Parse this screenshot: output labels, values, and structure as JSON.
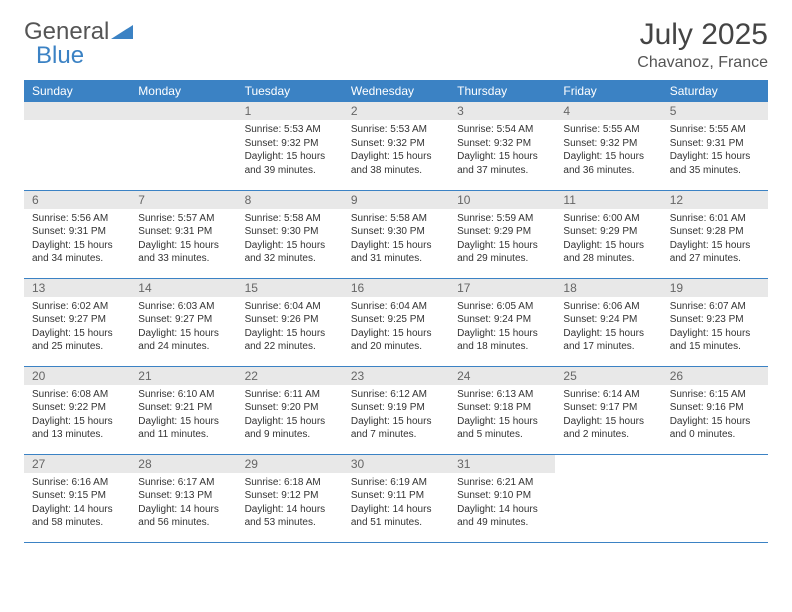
{
  "logo": {
    "general": "General",
    "blue": "Blue"
  },
  "title": "July 2025",
  "location": "Chavanoz, France",
  "weekdays": [
    "Sunday",
    "Monday",
    "Tuesday",
    "Wednesday",
    "Thursday",
    "Friday",
    "Saturday"
  ],
  "colors": {
    "header_bg": "#3b82c4",
    "header_text": "#ffffff",
    "daynum_bg": "#e8e8e8",
    "border": "#3b82c4"
  },
  "weeks": [
    [
      null,
      null,
      {
        "n": "1",
        "sr": "Sunrise: 5:53 AM",
        "ss": "Sunset: 9:32 PM",
        "dl1": "Daylight: 15 hours",
        "dl2": "and 39 minutes."
      },
      {
        "n": "2",
        "sr": "Sunrise: 5:53 AM",
        "ss": "Sunset: 9:32 PM",
        "dl1": "Daylight: 15 hours",
        "dl2": "and 38 minutes."
      },
      {
        "n": "3",
        "sr": "Sunrise: 5:54 AM",
        "ss": "Sunset: 9:32 PM",
        "dl1": "Daylight: 15 hours",
        "dl2": "and 37 minutes."
      },
      {
        "n": "4",
        "sr": "Sunrise: 5:55 AM",
        "ss": "Sunset: 9:32 PM",
        "dl1": "Daylight: 15 hours",
        "dl2": "and 36 minutes."
      },
      {
        "n": "5",
        "sr": "Sunrise: 5:55 AM",
        "ss": "Sunset: 9:31 PM",
        "dl1": "Daylight: 15 hours",
        "dl2": "and 35 minutes."
      }
    ],
    [
      {
        "n": "6",
        "sr": "Sunrise: 5:56 AM",
        "ss": "Sunset: 9:31 PM",
        "dl1": "Daylight: 15 hours",
        "dl2": "and 34 minutes."
      },
      {
        "n": "7",
        "sr": "Sunrise: 5:57 AM",
        "ss": "Sunset: 9:31 PM",
        "dl1": "Daylight: 15 hours",
        "dl2": "and 33 minutes."
      },
      {
        "n": "8",
        "sr": "Sunrise: 5:58 AM",
        "ss": "Sunset: 9:30 PM",
        "dl1": "Daylight: 15 hours",
        "dl2": "and 32 minutes."
      },
      {
        "n": "9",
        "sr": "Sunrise: 5:58 AM",
        "ss": "Sunset: 9:30 PM",
        "dl1": "Daylight: 15 hours",
        "dl2": "and 31 minutes."
      },
      {
        "n": "10",
        "sr": "Sunrise: 5:59 AM",
        "ss": "Sunset: 9:29 PM",
        "dl1": "Daylight: 15 hours",
        "dl2": "and 29 minutes."
      },
      {
        "n": "11",
        "sr": "Sunrise: 6:00 AM",
        "ss": "Sunset: 9:29 PM",
        "dl1": "Daylight: 15 hours",
        "dl2": "and 28 minutes."
      },
      {
        "n": "12",
        "sr": "Sunrise: 6:01 AM",
        "ss": "Sunset: 9:28 PM",
        "dl1": "Daylight: 15 hours",
        "dl2": "and 27 minutes."
      }
    ],
    [
      {
        "n": "13",
        "sr": "Sunrise: 6:02 AM",
        "ss": "Sunset: 9:27 PM",
        "dl1": "Daylight: 15 hours",
        "dl2": "and 25 minutes."
      },
      {
        "n": "14",
        "sr": "Sunrise: 6:03 AM",
        "ss": "Sunset: 9:27 PM",
        "dl1": "Daylight: 15 hours",
        "dl2": "and 24 minutes."
      },
      {
        "n": "15",
        "sr": "Sunrise: 6:04 AM",
        "ss": "Sunset: 9:26 PM",
        "dl1": "Daylight: 15 hours",
        "dl2": "and 22 minutes."
      },
      {
        "n": "16",
        "sr": "Sunrise: 6:04 AM",
        "ss": "Sunset: 9:25 PM",
        "dl1": "Daylight: 15 hours",
        "dl2": "and 20 minutes."
      },
      {
        "n": "17",
        "sr": "Sunrise: 6:05 AM",
        "ss": "Sunset: 9:24 PM",
        "dl1": "Daylight: 15 hours",
        "dl2": "and 18 minutes."
      },
      {
        "n": "18",
        "sr": "Sunrise: 6:06 AM",
        "ss": "Sunset: 9:24 PM",
        "dl1": "Daylight: 15 hours",
        "dl2": "and 17 minutes."
      },
      {
        "n": "19",
        "sr": "Sunrise: 6:07 AM",
        "ss": "Sunset: 9:23 PM",
        "dl1": "Daylight: 15 hours",
        "dl2": "and 15 minutes."
      }
    ],
    [
      {
        "n": "20",
        "sr": "Sunrise: 6:08 AM",
        "ss": "Sunset: 9:22 PM",
        "dl1": "Daylight: 15 hours",
        "dl2": "and 13 minutes."
      },
      {
        "n": "21",
        "sr": "Sunrise: 6:10 AM",
        "ss": "Sunset: 9:21 PM",
        "dl1": "Daylight: 15 hours",
        "dl2": "and 11 minutes."
      },
      {
        "n": "22",
        "sr": "Sunrise: 6:11 AM",
        "ss": "Sunset: 9:20 PM",
        "dl1": "Daylight: 15 hours",
        "dl2": "and 9 minutes."
      },
      {
        "n": "23",
        "sr": "Sunrise: 6:12 AM",
        "ss": "Sunset: 9:19 PM",
        "dl1": "Daylight: 15 hours",
        "dl2": "and 7 minutes."
      },
      {
        "n": "24",
        "sr": "Sunrise: 6:13 AM",
        "ss": "Sunset: 9:18 PM",
        "dl1": "Daylight: 15 hours",
        "dl2": "and 5 minutes."
      },
      {
        "n": "25",
        "sr": "Sunrise: 6:14 AM",
        "ss": "Sunset: 9:17 PM",
        "dl1": "Daylight: 15 hours",
        "dl2": "and 2 minutes."
      },
      {
        "n": "26",
        "sr": "Sunrise: 6:15 AM",
        "ss": "Sunset: 9:16 PM",
        "dl1": "Daylight: 15 hours",
        "dl2": "and 0 minutes."
      }
    ],
    [
      {
        "n": "27",
        "sr": "Sunrise: 6:16 AM",
        "ss": "Sunset: 9:15 PM",
        "dl1": "Daylight: 14 hours",
        "dl2": "and 58 minutes."
      },
      {
        "n": "28",
        "sr": "Sunrise: 6:17 AM",
        "ss": "Sunset: 9:13 PM",
        "dl1": "Daylight: 14 hours",
        "dl2": "and 56 minutes."
      },
      {
        "n": "29",
        "sr": "Sunrise: 6:18 AM",
        "ss": "Sunset: 9:12 PM",
        "dl1": "Daylight: 14 hours",
        "dl2": "and 53 minutes."
      },
      {
        "n": "30",
        "sr": "Sunrise: 6:19 AM",
        "ss": "Sunset: 9:11 PM",
        "dl1": "Daylight: 14 hours",
        "dl2": "and 51 minutes."
      },
      {
        "n": "31",
        "sr": "Sunrise: 6:21 AM",
        "ss": "Sunset: 9:10 PM",
        "dl1": "Daylight: 14 hours",
        "dl2": "and 49 minutes."
      },
      null,
      null
    ]
  ]
}
